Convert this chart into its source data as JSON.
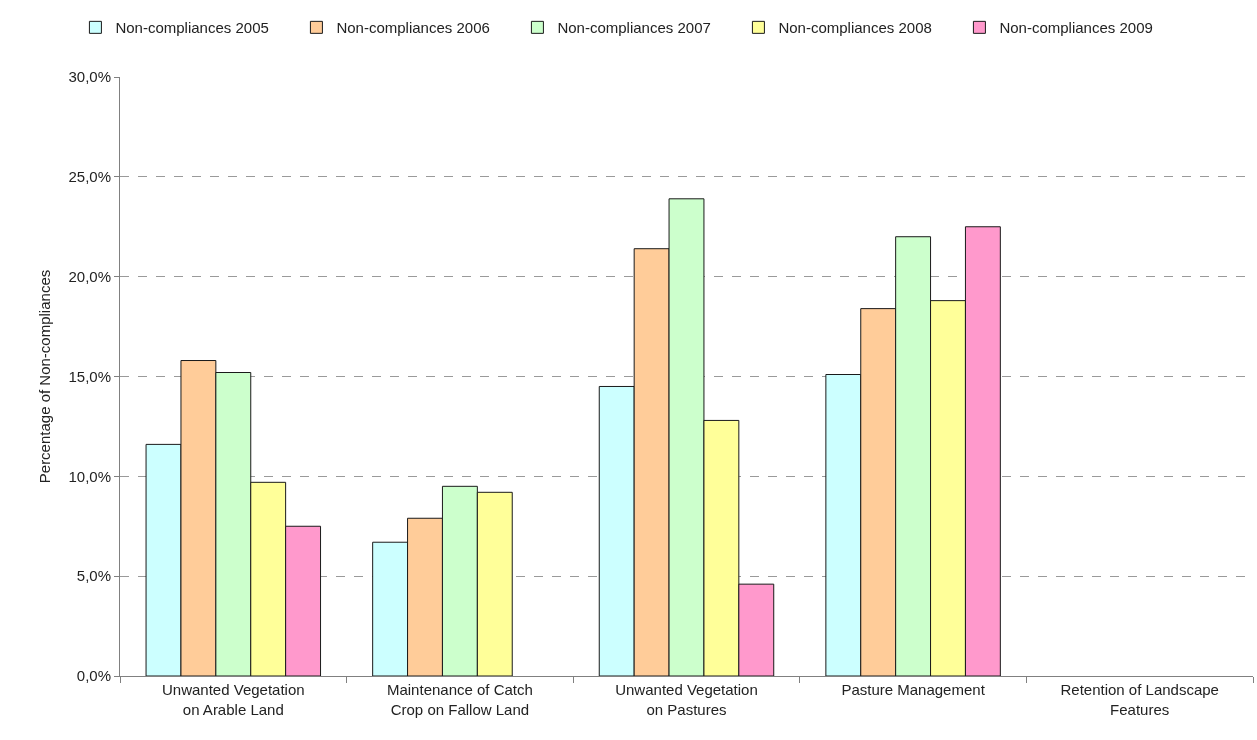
{
  "chart_data": {
    "type": "bar",
    "ylabel": "Percentage of Non-compliances",
    "categories": [
      "Unwanted Vegetation on Arable Land",
      "Maintenance of Catch Crop on Fallow Land",
      "Unwanted Vegetation on Pastures",
      "Pasture Management",
      "Retention of Landscape Features"
    ],
    "series": [
      {
        "name": "Non-compliances 2005",
        "color": "#ccffff",
        "values": [
          11.6,
          6.7,
          14.5,
          15.1,
          null
        ]
      },
      {
        "name": "Non-compliances 2006",
        "color": "#ffcc99",
        "values": [
          15.8,
          7.9,
          21.4,
          18.4,
          null
        ]
      },
      {
        "name": "Non-compliances 2007",
        "color": "#ccffcc",
        "values": [
          15.2,
          9.5,
          23.9,
          22.0,
          null
        ]
      },
      {
        "name": "Non-compliances 2008",
        "color": "#ffff99",
        "values": [
          9.7,
          9.2,
          12.8,
          18.8,
          null
        ]
      },
      {
        "name": "Non-compliances 2009",
        "color": "#ff99cc",
        "values": [
          7.5,
          null,
          4.6,
          22.5,
          null
        ]
      }
    ],
    "ylim": [
      0,
      30
    ],
    "yticks": [
      {
        "value": 0,
        "label": "0,0%"
      },
      {
        "value": 5,
        "label": "5,0%"
      },
      {
        "value": 10,
        "label": "10,0%"
      },
      {
        "value": 15,
        "label": "15,0%"
      },
      {
        "value": 20,
        "label": "20,0%"
      },
      {
        "value": 25,
        "label": "25,0%"
      },
      {
        "value": 30,
        "label": "30,0%"
      }
    ],
    "grid": "y",
    "legend": "top"
  }
}
